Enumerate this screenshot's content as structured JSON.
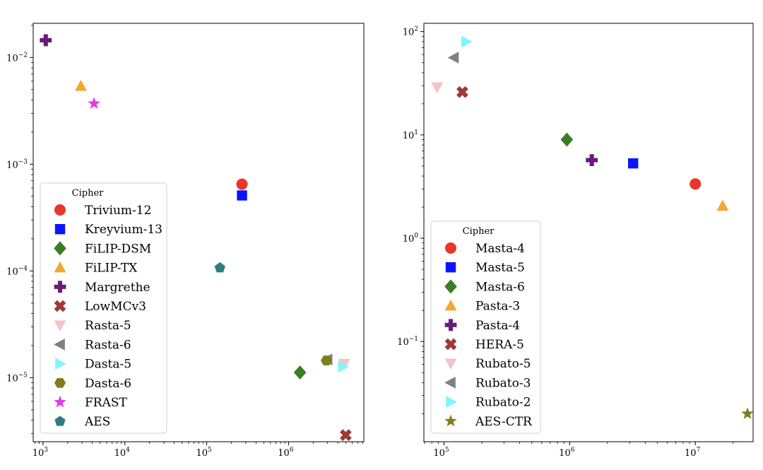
{
  "chart_data": [
    {
      "type": "scatter",
      "id": "left",
      "xscale": "log",
      "yscale": "log",
      "xlim_log10": [
        2.88,
        6.92
      ],
      "ylim_log10": [
        -5.6,
        -1.68
      ],
      "xticks": [
        {
          "base": "10",
          "exp": "3",
          "log": 3
        },
        {
          "base": "10",
          "exp": "4",
          "log": 4
        },
        {
          "base": "10",
          "exp": "5",
          "log": 5
        },
        {
          "base": "10",
          "exp": "6",
          "log": 6
        }
      ],
      "yticks": [
        {
          "base": "10",
          "exp": "−2",
          "log": -2
        },
        {
          "base": "10",
          "exp": "−3",
          "log": -3
        },
        {
          "base": "10",
          "exp": "−4",
          "log": -4
        },
        {
          "base": "10",
          "exp": "−5",
          "log": -5
        }
      ],
      "legend": {
        "title": "Cipher",
        "placement": "lower-left"
      },
      "series": [
        {
          "name": "Trivium-12",
          "marker": "circle",
          "color": "#e8362a",
          "x": 270000,
          "y": 0.00065
        },
        {
          "name": "Kreyvium-13",
          "marker": "square",
          "color": "#0a14ff",
          "x": 270000,
          "y": 0.00051
        },
        {
          "name": "FiLIP-DSM",
          "marker": "diamond",
          "color": "#3a7d22",
          "x": 1380000,
          "y": 1.12e-05
        },
        {
          "name": "FiLIP-TX",
          "marker": "triangle-up",
          "color": "#f0a830",
          "x": 2900,
          "y": 0.0054
        },
        {
          "name": "Margrethe",
          "marker": "plus",
          "color": "#6a1b7a",
          "x": 1080,
          "y": 0.0145
        },
        {
          "name": "LowMCv3",
          "marker": "x",
          "color": "#9e3a34",
          "x": 5000000,
          "y": 2.9e-06
        },
        {
          "name": "Rasta-5",
          "marker": "triangle-down",
          "color": "#f4c2c8",
          "x": 4800000,
          "y": 1.35e-05
        },
        {
          "name": "Rasta-6",
          "marker": "triangle-left",
          "color": "#808080",
          "x": 3000000,
          "y": 1.48e-05
        },
        {
          "name": "Dasta-5",
          "marker": "triangle-right",
          "color": "#7ff6f9",
          "x": 4600000,
          "y": 1.27e-05
        },
        {
          "name": "Dasta-6",
          "marker": "hexagon",
          "color": "#7f7f1a",
          "x": 2900000,
          "y": 1.45e-05
        },
        {
          "name": "FRAST",
          "marker": "star",
          "color": "#e23ae8",
          "x": 4200,
          "y": 0.0037
        },
        {
          "name": "AES",
          "marker": "pentagon",
          "color": "#2f7c80",
          "x": 145000,
          "y": 0.000107
        }
      ]
    },
    {
      "type": "scatter",
      "id": "right",
      "xscale": "log",
      "yscale": "log",
      "xlim_log10": [
        4.84,
        7.46
      ],
      "ylim_log10": [
        -1.97,
        2.08
      ],
      "xticks": [
        {
          "base": "10",
          "exp": "5",
          "log": 5
        },
        {
          "base": "10",
          "exp": "6",
          "log": 6
        },
        {
          "base": "10",
          "exp": "7",
          "log": 7
        }
      ],
      "yticks": [
        {
          "base": "10",
          "exp": "2",
          "log": 2
        },
        {
          "base": "10",
          "exp": "1",
          "log": 1
        },
        {
          "base": "10",
          "exp": "0",
          "log": 0
        },
        {
          "base": "10",
          "exp": "−1",
          "log": -1
        }
      ],
      "legend": {
        "title": "Cipher",
        "placement": "lower-left"
      },
      "series": [
        {
          "name": "Masta-4",
          "marker": "circle",
          "color": "#e8362a",
          "x": 10000000,
          "y": 3.35
        },
        {
          "name": "Masta-5",
          "marker": "square",
          "color": "#0a14ff",
          "x": 3200000,
          "y": 5.3
        },
        {
          "name": "Masta-6",
          "marker": "diamond",
          "color": "#3a7d22",
          "x": 950000,
          "y": 9.0
        },
        {
          "name": "Pasta-3",
          "marker": "triangle-up",
          "color": "#f0a830",
          "x": 16500000,
          "y": 2.05
        },
        {
          "name": "Pasta-4",
          "marker": "plus",
          "color": "#6a1b7a",
          "x": 1500000,
          "y": 5.7
        },
        {
          "name": "HERA-5",
          "marker": "x",
          "color": "#9e3a34",
          "x": 140000,
          "y": 26
        },
        {
          "name": "Rubato-5",
          "marker": "triangle-down",
          "color": "#f4c2c8",
          "x": 88000,
          "y": 29
        },
        {
          "name": "Rubato-3",
          "marker": "triangle-left",
          "color": "#808080",
          "x": 120000,
          "y": 56
        },
        {
          "name": "Rubato-2",
          "marker": "triangle-right",
          "color": "#7ff6f9",
          "x": 150000,
          "y": 80
        },
        {
          "name": "AES-CTR",
          "marker": "star",
          "color": "#7f7f1a",
          "x": 26000000,
          "y": 0.02
        }
      ]
    }
  ]
}
